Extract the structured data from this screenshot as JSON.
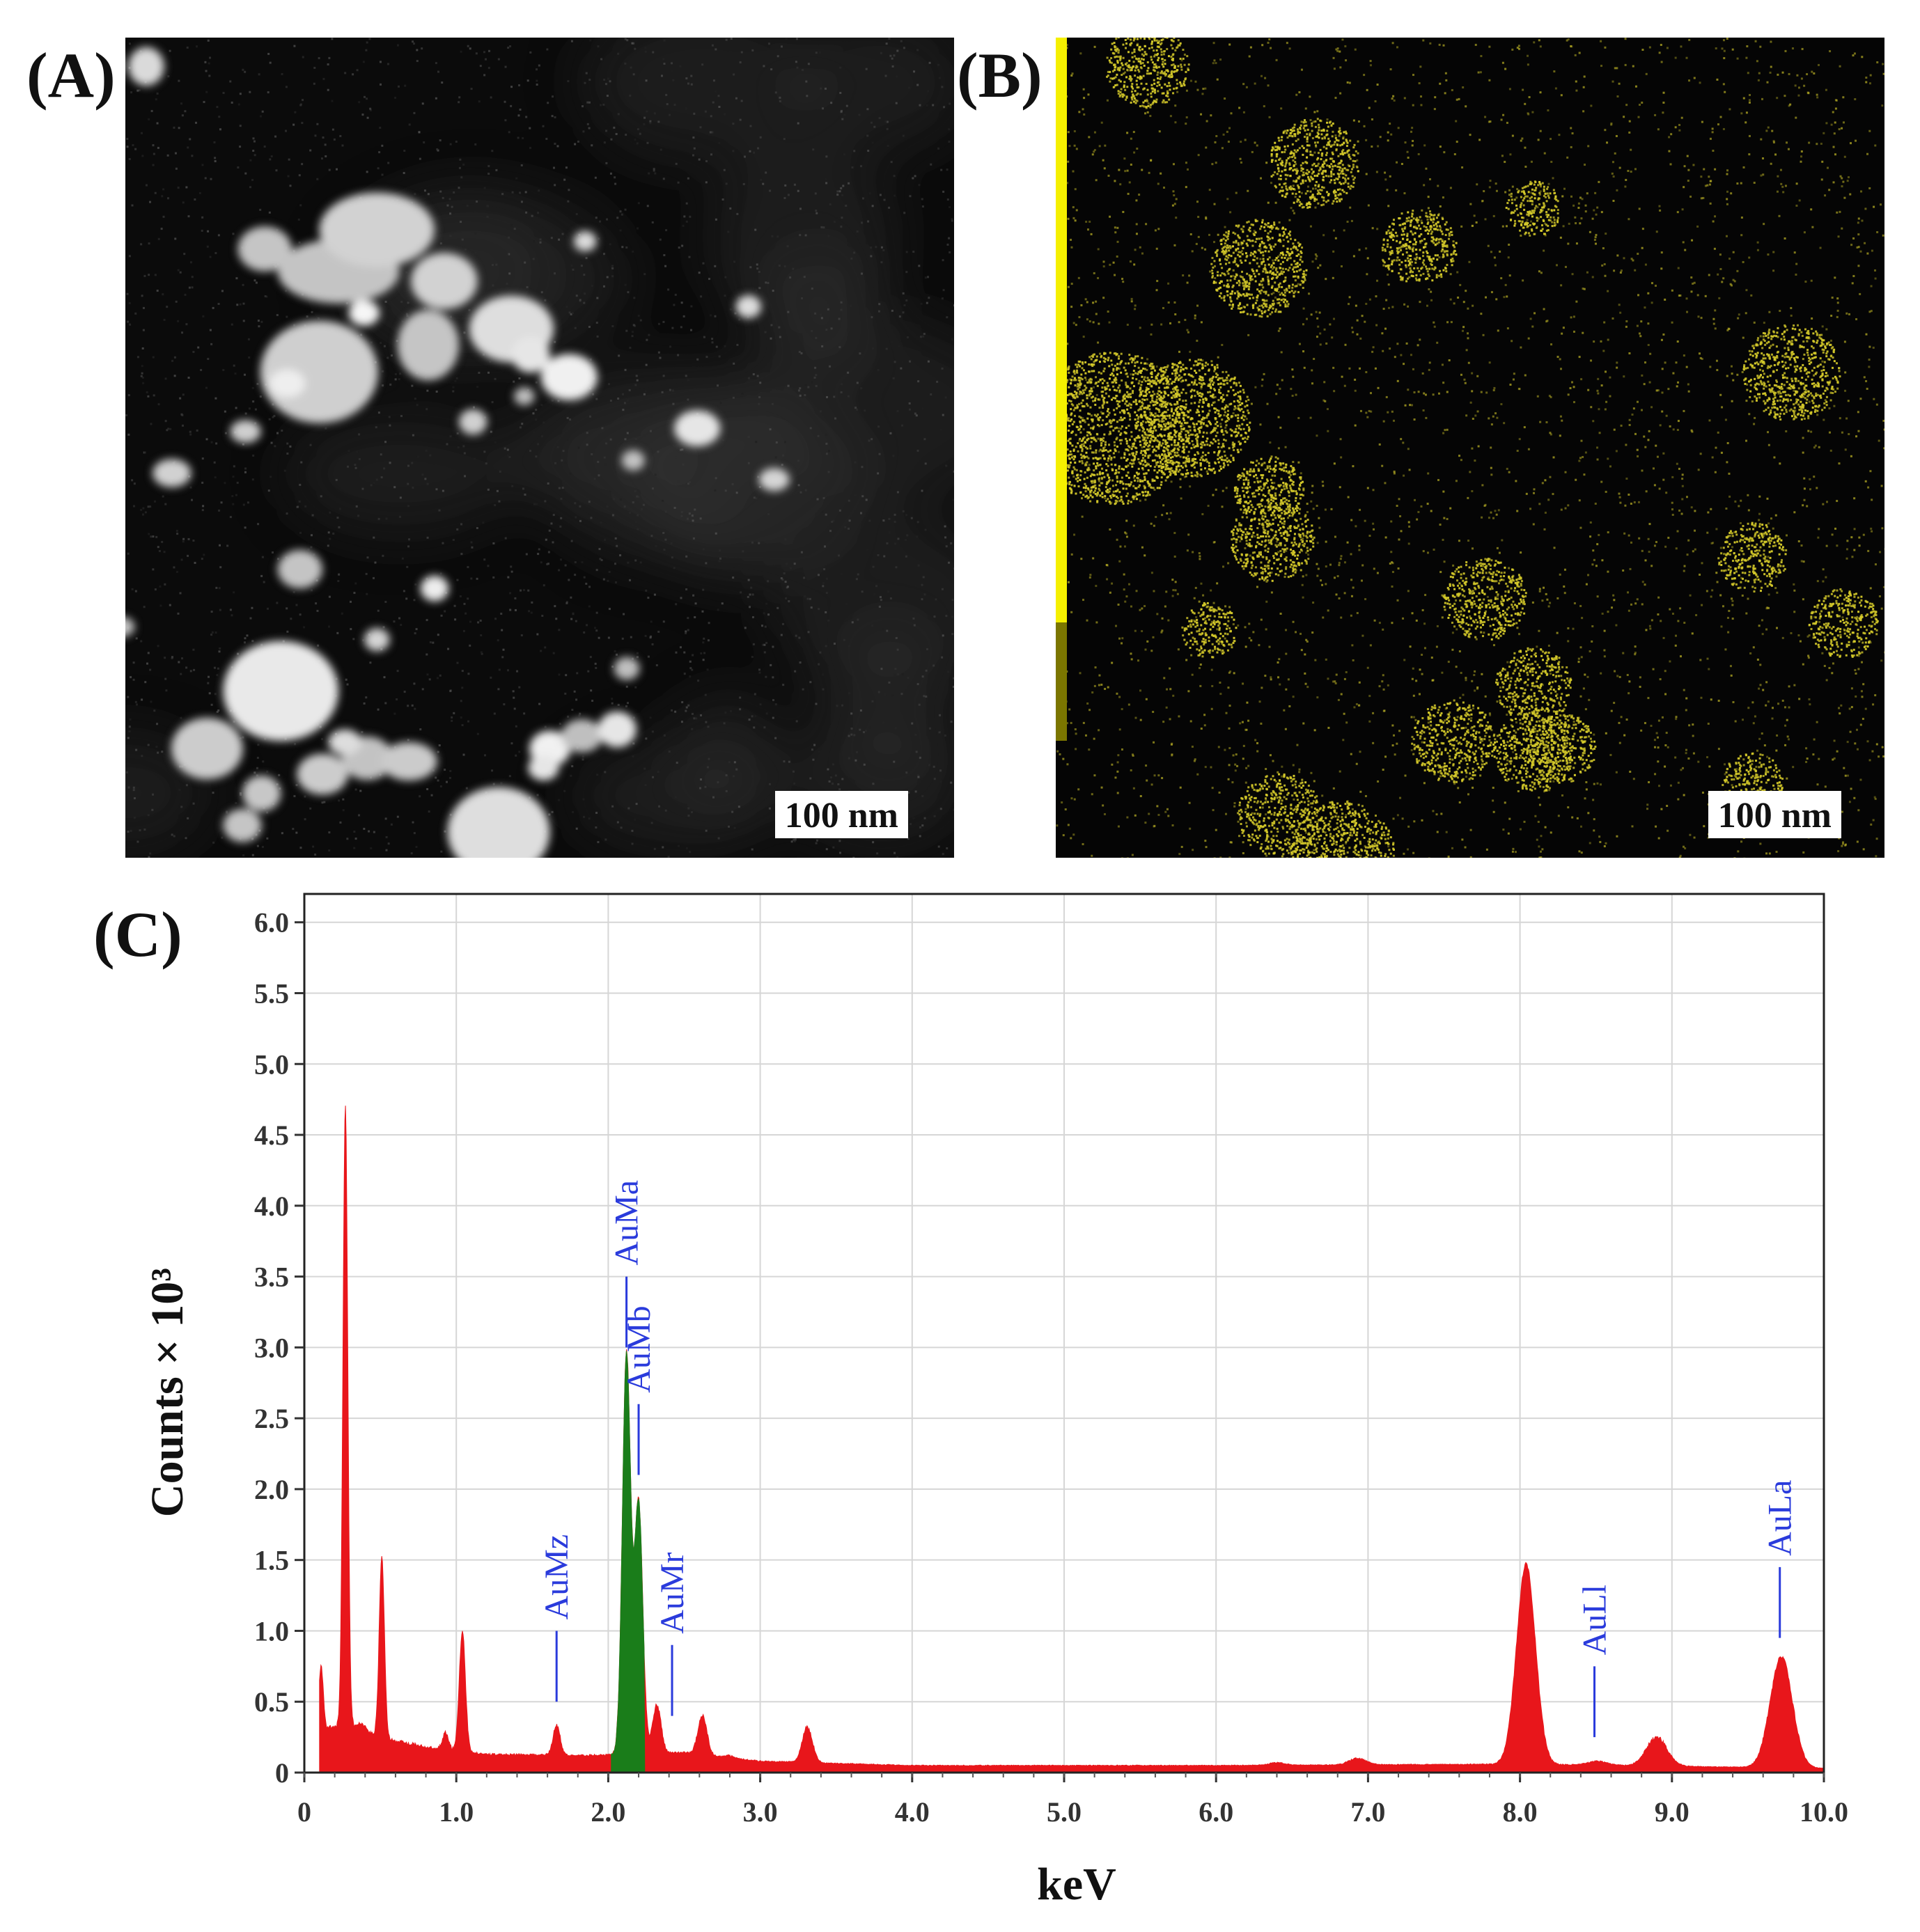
{
  "panels": {
    "a": {
      "label": "(A)",
      "scale_bar": "100 nm"
    },
    "b": {
      "label": "(B)",
      "scale_bar": "100 nm",
      "map_color": "#d4c92a"
    },
    "c": {
      "label": "(C)"
    }
  },
  "chart_data": {
    "type": "area",
    "xlabel": "keV",
    "ylabel": "Counts × 10³",
    "xlim": [
      0,
      10
    ],
    "ylim": [
      0,
      6.2
    ],
    "grid": true,
    "x_ticks": [
      "0",
      "1.0",
      "2.0",
      "3.0",
      "4.0",
      "5.0",
      "6.0",
      "7.0",
      "8.0",
      "9.0",
      "10.0"
    ],
    "y_ticks": [
      "0",
      "0.5",
      "1.0",
      "1.5",
      "2.0",
      "2.5",
      "3.0",
      "3.5",
      "4.0",
      "4.5",
      "5.0",
      "5.5",
      "6.0"
    ],
    "colors": {
      "spectrum": "#e8161b",
      "highlight": "#1a7d1a",
      "marker": "#2a3bdc"
    },
    "baseline": [
      [
        0.1,
        0.3
      ],
      [
        0.3,
        0.35
      ],
      [
        0.5,
        0.25
      ],
      [
        0.8,
        0.18
      ],
      [
        1.2,
        0.13
      ],
      [
        1.8,
        0.12
      ],
      [
        2.5,
        0.14
      ],
      [
        3.0,
        0.08
      ],
      [
        4.0,
        0.05
      ],
      [
        6.0,
        0.05
      ],
      [
        8.0,
        0.06
      ],
      [
        10.0,
        0.03
      ]
    ],
    "peaks": [
      {
        "x": 0.11,
        "y": 0.75
      },
      {
        "x": 0.27,
        "y": 4.72
      },
      {
        "x": 0.38,
        "y": 0.35
      },
      {
        "x": 0.51,
        "y": 1.52
      },
      {
        "x": 0.93,
        "y": 0.28
      },
      {
        "x": 1.04,
        "y": 1.0
      },
      {
        "x": 1.66,
        "y": 0.33
      },
      {
        "x": 2.12,
        "y": 2.95
      },
      {
        "x": 2.2,
        "y": 1.9
      },
      {
        "x": 2.32,
        "y": 0.48
      },
      {
        "x": 2.62,
        "y": 0.4
      },
      {
        "x": 2.8,
        "y": 0.12
      },
      {
        "x": 3.31,
        "y": 0.32
      },
      {
        "x": 6.4,
        "y": 0.07
      },
      {
        "x": 6.93,
        "y": 0.1
      },
      {
        "x": 8.04,
        "y": 1.47
      },
      {
        "x": 8.51,
        "y": 0.08
      },
      {
        "x": 8.9,
        "y": 0.25
      },
      {
        "x": 9.72,
        "y": 0.82
      }
    ],
    "highlight_range": [
      2.02,
      2.24
    ],
    "markers": [
      {
        "label": "AuMz",
        "x": 1.66,
        "y_bottom": 0.5,
        "y_top": 1.0
      },
      {
        "label": "AuMa",
        "x": 2.12,
        "y_bottom": 3.0,
        "y_top": 3.5
      },
      {
        "label": "AuMb",
        "x": 2.2,
        "y_bottom": 2.1,
        "y_top": 2.6
      },
      {
        "label": "AuMr",
        "x": 2.42,
        "y_bottom": 0.4,
        "y_top": 0.9
      },
      {
        "label": "AuLl",
        "x": 8.49,
        "y_bottom": 0.25,
        "y_top": 0.75
      },
      {
        "label": "AuLa",
        "x": 9.71,
        "y_bottom": 0.95,
        "y_top": 1.45
      }
    ]
  }
}
